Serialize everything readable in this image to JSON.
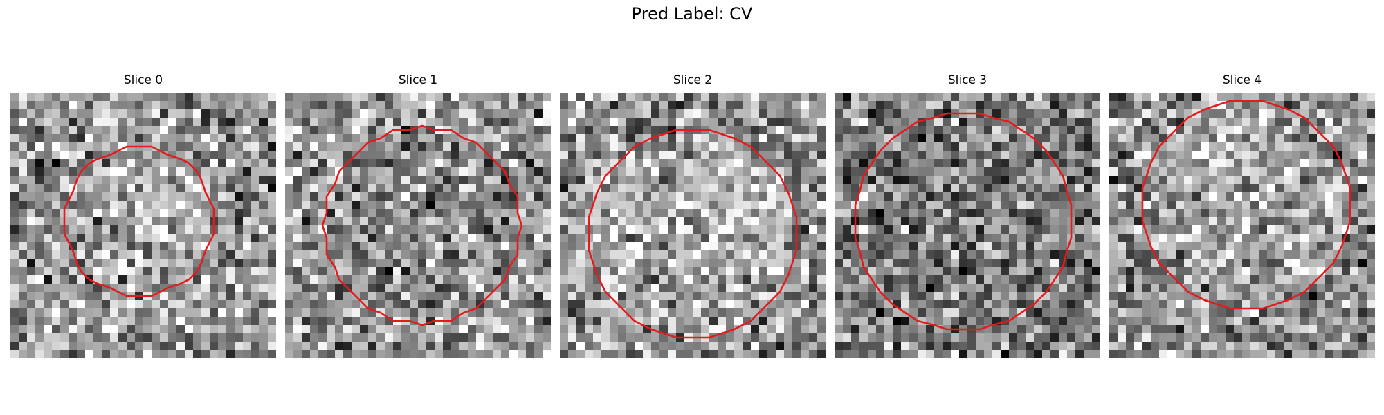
{
  "figure": {
    "title": "Pred Label: CV"
  },
  "panels": [
    {
      "label": "Slice 0"
    },
    {
      "label": "Slice 1"
    },
    {
      "label": "Slice 2"
    },
    {
      "label": "Slice 3"
    },
    {
      "label": "Slice 4"
    }
  ],
  "colors": {
    "contour": "#e41a1c",
    "background": "#ffffff"
  }
}
